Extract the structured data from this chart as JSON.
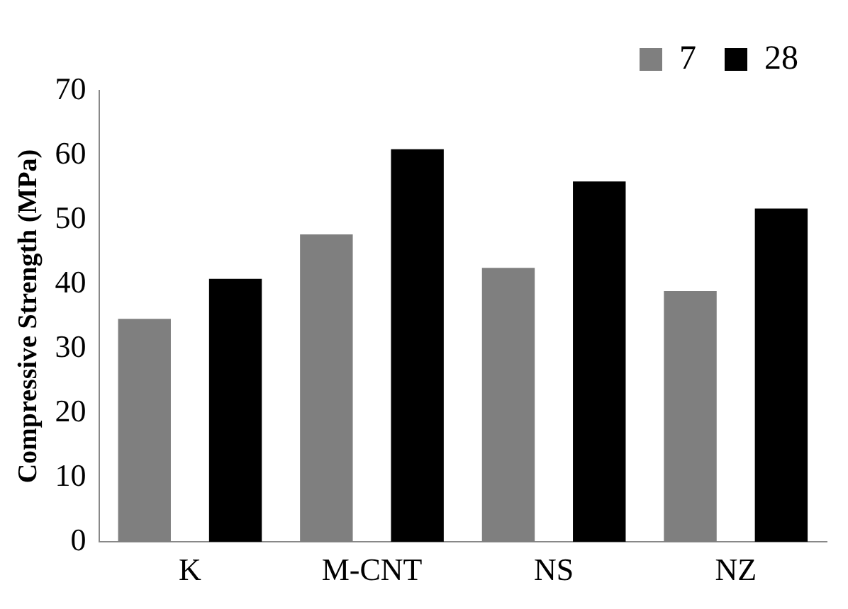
{
  "chart_data": {
    "type": "bar",
    "ylabel": "Compressive Strength (MPa)",
    "categories": [
      "K",
      "M-CNT",
      "NS",
      "NZ"
    ],
    "series": [
      {
        "name": "7",
        "color": "#7f7f7f",
        "values": [
          34.6,
          47.7,
          42.5,
          38.9
        ]
      },
      {
        "name": "28",
        "color": "#000000",
        "values": [
          40.8,
          60.9,
          55.9,
          51.7
        ]
      }
    ],
    "ylim": [
      0,
      70
    ],
    "yticks": [
      0,
      10,
      20,
      30,
      40,
      50,
      60,
      70
    ],
    "grid": false,
    "legend": "top right"
  }
}
